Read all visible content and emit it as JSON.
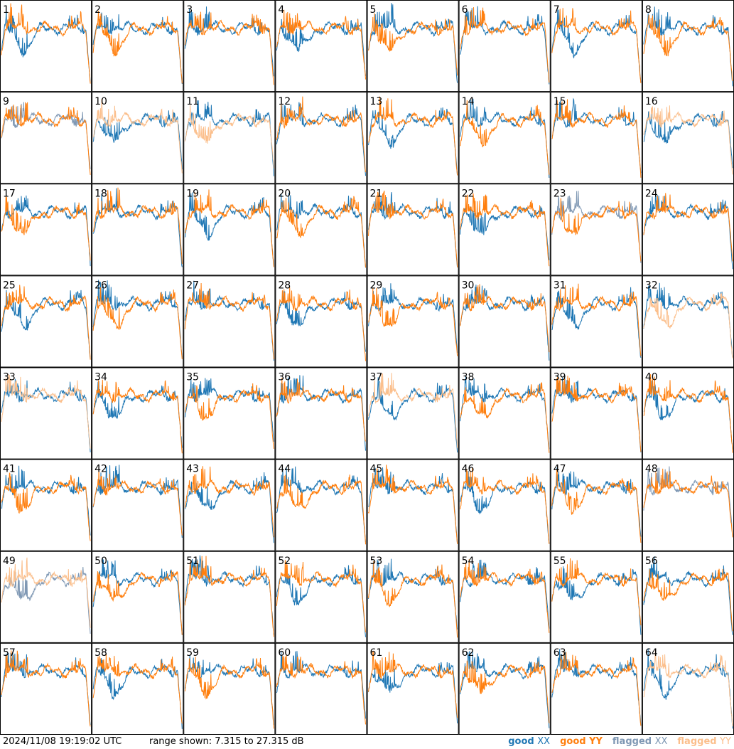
{
  "footer": {
    "timestamp": "2024/11/08 19:19:02 UTC",
    "range": "range shown: 7.315 to 27.315 dB"
  },
  "legend": [
    {
      "word": "good",
      "pol": "XX",
      "color": "#1f77b4"
    },
    {
      "word": "good",
      "pol": "YY",
      "color": "#ff7f0e"
    },
    {
      "word": "flagged",
      "pol": "XX",
      "color": "#7f98b4"
    },
    {
      "word": "flagged",
      "pol": "YY",
      "color": "#fbbf8c"
    }
  ],
  "chart_data": {
    "type": "line",
    "grid": "8x8 small multiples",
    "ylim_db": [
      7.315,
      27.315
    ],
    "panels": [
      {
        "label": "1",
        "xx": "good",
        "yy": "good"
      },
      {
        "label": "2",
        "xx": "good",
        "yy": "good"
      },
      {
        "label": "3",
        "xx": "good",
        "yy": "good"
      },
      {
        "label": "4",
        "xx": "good",
        "yy": "good"
      },
      {
        "label": "5",
        "xx": "good",
        "yy": "good"
      },
      {
        "label": "6",
        "xx": "good",
        "yy": "good"
      },
      {
        "label": "7",
        "xx": "good",
        "yy": "good"
      },
      {
        "label": "8",
        "xx": "good",
        "yy": "good"
      },
      {
        "label": "9",
        "xx": "flagged",
        "yy": "good"
      },
      {
        "label": "10",
        "xx": "good",
        "yy": "flagged"
      },
      {
        "label": "11",
        "xx": "good",
        "yy": "flagged"
      },
      {
        "label": "12",
        "xx": "good",
        "yy": "good"
      },
      {
        "label": "13",
        "xx": "good",
        "yy": "good"
      },
      {
        "label": "14",
        "xx": "good",
        "yy": "good"
      },
      {
        "label": "15",
        "xx": "good",
        "yy": "good"
      },
      {
        "label": "16",
        "xx": "good",
        "yy": "flagged"
      },
      {
        "label": "17",
        "xx": "good",
        "yy": "good"
      },
      {
        "label": "18",
        "xx": "good",
        "yy": "good"
      },
      {
        "label": "19",
        "xx": "good",
        "yy": "good"
      },
      {
        "label": "20",
        "xx": "good",
        "yy": "good"
      },
      {
        "label": "21",
        "xx": "good",
        "yy": "good"
      },
      {
        "label": "22",
        "xx": "good",
        "yy": "good"
      },
      {
        "label": "23",
        "xx": "flagged",
        "yy": "good"
      },
      {
        "label": "24",
        "xx": "good",
        "yy": "good"
      },
      {
        "label": "25",
        "xx": "good",
        "yy": "good"
      },
      {
        "label": "26",
        "xx": "good",
        "yy": "good"
      },
      {
        "label": "27",
        "xx": "good",
        "yy": "good"
      },
      {
        "label": "28",
        "xx": "good",
        "yy": "good"
      },
      {
        "label": "29",
        "xx": "good",
        "yy": "good"
      },
      {
        "label": "30",
        "xx": "good",
        "yy": "good"
      },
      {
        "label": "31",
        "xx": "good",
        "yy": "good"
      },
      {
        "label": "32",
        "xx": "good",
        "yy": "flagged"
      },
      {
        "label": "33",
        "xx": "good",
        "yy": "flagged"
      },
      {
        "label": "34",
        "xx": "good",
        "yy": "good"
      },
      {
        "label": "35",
        "xx": "good",
        "yy": "good"
      },
      {
        "label": "36",
        "xx": "good",
        "yy": "good"
      },
      {
        "label": "37",
        "xx": "good",
        "yy": "flagged"
      },
      {
        "label": "38",
        "xx": "good",
        "yy": "good"
      },
      {
        "label": "39",
        "xx": "good",
        "yy": "good"
      },
      {
        "label": "40",
        "xx": "good",
        "yy": "good"
      },
      {
        "label": "41",
        "xx": "good",
        "yy": "good"
      },
      {
        "label": "42",
        "xx": "good",
        "yy": "good"
      },
      {
        "label": "43",
        "xx": "good",
        "yy": "good"
      },
      {
        "label": "44",
        "xx": "good",
        "yy": "good"
      },
      {
        "label": "45",
        "xx": "good",
        "yy": "good"
      },
      {
        "label": "46",
        "xx": "good",
        "yy": "good"
      },
      {
        "label": "47",
        "xx": "good",
        "yy": "good"
      },
      {
        "label": "48",
        "xx": "flagged",
        "yy": "good"
      },
      {
        "label": "49",
        "xx": "flagged",
        "yy": "flagged"
      },
      {
        "label": "50",
        "xx": "good",
        "yy": "good"
      },
      {
        "label": "51",
        "xx": "good",
        "yy": "good"
      },
      {
        "label": "52",
        "xx": "good",
        "yy": "good"
      },
      {
        "label": "53",
        "xx": "good",
        "yy": "good"
      },
      {
        "label": "54",
        "xx": "good",
        "yy": "good"
      },
      {
        "label": "55",
        "xx": "good",
        "yy": "good"
      },
      {
        "label": "56",
        "xx": "good",
        "yy": "good"
      },
      {
        "label": "57",
        "xx": "good",
        "yy": "good"
      },
      {
        "label": "58",
        "xx": "good",
        "yy": "good"
      },
      {
        "label": "59",
        "xx": "good",
        "yy": "good"
      },
      {
        "label": "60",
        "xx": "good",
        "yy": "good"
      },
      {
        "label": "61",
        "xx": "good",
        "yy": "good"
      },
      {
        "label": "62",
        "xx": "good",
        "yy": "good"
      },
      {
        "label": "63",
        "xx": "good",
        "yy": "good"
      },
      {
        "label": "64",
        "xx": "good",
        "yy": "flagged"
      }
    ]
  }
}
